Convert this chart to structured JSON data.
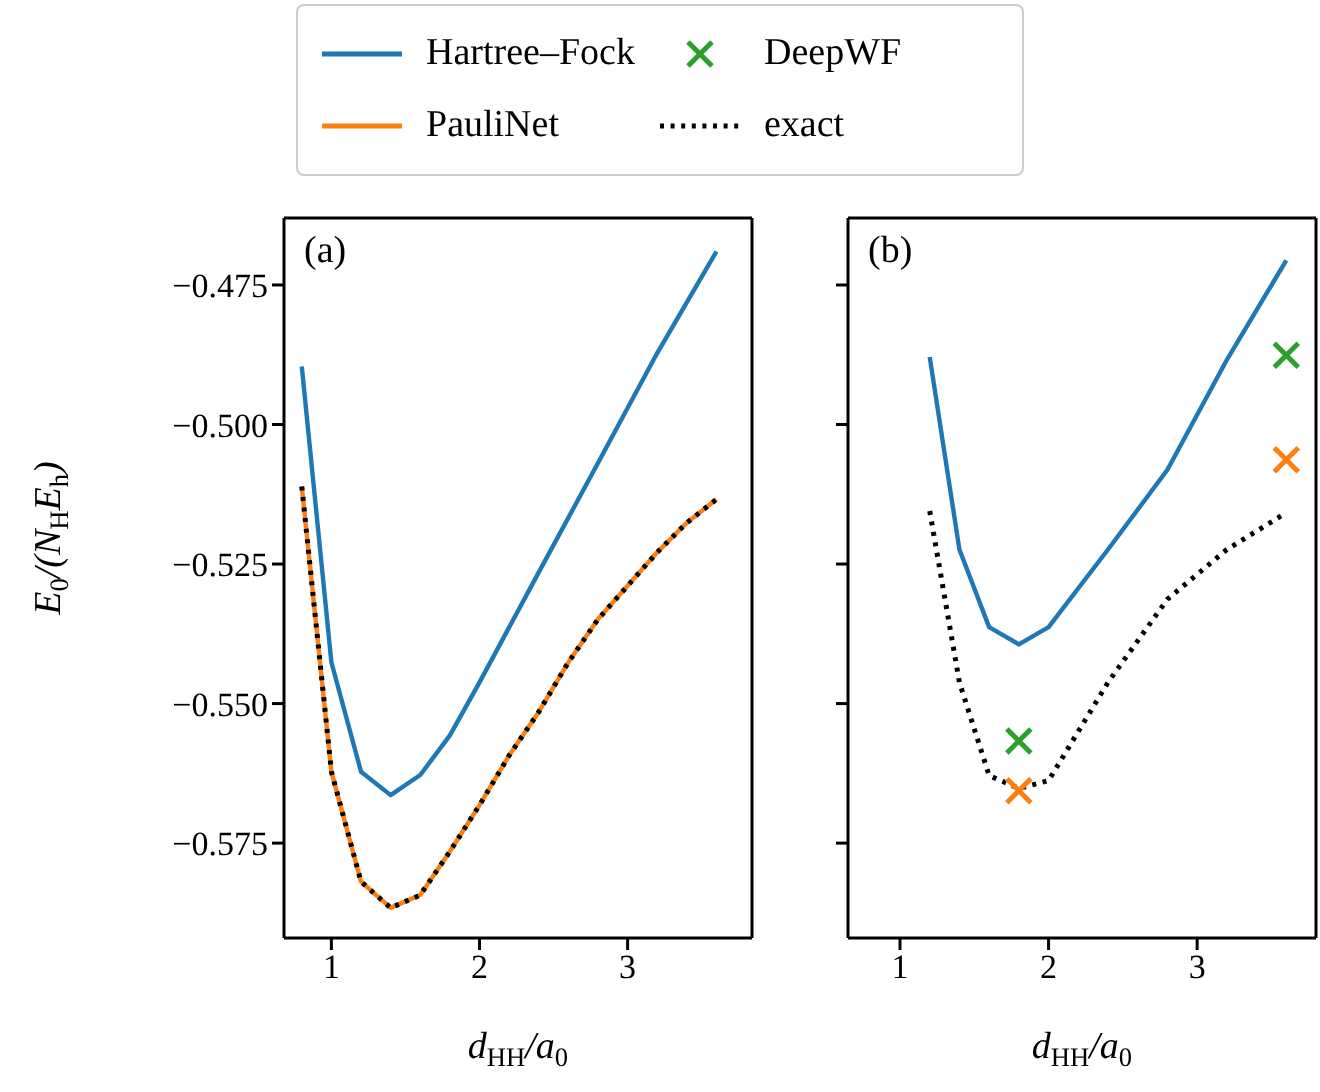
{
  "chart_data": [
    {
      "type": "line",
      "xlabel": "d$_{HH}$/a$_{0}$",
      "ylabel": "E$_{0}$/(N$_{H}$E$_{h}$)",
      "annotations": [
        "(a)"
      ],
      "legend": "top",
      "xlim": [
        0.68,
        3.84
      ],
      "xticks": [
        1,
        2,
        3
      ],
      "ylim": [
        -0.592,
        -0.463
      ],
      "yticks": [
        {
          "value": -0.475,
          "label": "−0.475"
        },
        {
          "value": -0.5,
          "label": "−0.500"
        },
        {
          "value": -0.525,
          "label": "−0.525"
        },
        {
          "value": -0.55,
          "label": "−0.550"
        },
        {
          "value": -0.575,
          "label": "−0.575"
        }
      ],
      "series": [
        {
          "name": "Hartree–Fock",
          "color": "#1f77b4",
          "x": [
            0.8,
            1.0,
            1.2,
            1.4,
            1.6,
            1.8,
            2.0,
            2.4,
            2.8,
            3.2,
            3.6
          ],
          "values": [
            -0.4896,
            -0.5426,
            -0.5622,
            -0.5664,
            -0.5628,
            -0.5557,
            -0.5462,
            -0.5265,
            -0.5069,
            -0.4872,
            -0.469
          ]
        },
        {
          "name": "PauliNet",
          "color": "#ff7f0e",
          "x": [
            0.8,
            1.0,
            1.2,
            1.4,
            1.6,
            1.8,
            2.0,
            2.2,
            2.4,
            2.6,
            2.8,
            3.0,
            3.2,
            3.4,
            3.6
          ],
          "values": [
            -0.5111,
            -0.5622,
            -0.5819,
            -0.5866,
            -0.5843,
            -0.5765,
            -0.5682,
            -0.5593,
            -0.5515,
            -0.5426,
            -0.5349,
            -0.5289,
            -0.5229,
            -0.5176,
            -0.5134
          ]
        },
        {
          "name": "exact",
          "color": "#000000",
          "line_style": "dotted",
          "x": [
            0.8,
            1.0,
            1.2,
            1.4,
            1.6,
            1.8,
            2.0,
            2.2,
            2.4,
            2.6,
            2.8,
            3.0,
            3.2,
            3.4,
            3.6
          ],
          "values": [
            -0.5111,
            -0.5622,
            -0.5819,
            -0.5866,
            -0.5843,
            -0.5765,
            -0.5682,
            -0.5593,
            -0.5515,
            -0.5426,
            -0.5349,
            -0.5289,
            -0.5229,
            -0.5176,
            -0.5134
          ]
        }
      ]
    },
    {
      "type": "line",
      "xlabel": "d$_{HH}$/a$_{0}$",
      "annotations": [
        "(b)"
      ],
      "legend": "top",
      "tick_labels": "x",
      "xlim": [
        0.65,
        3.8
      ],
      "xticks": [
        1,
        2,
        3
      ],
      "ylim": [
        -0.592,
        -0.463
      ],
      "yticks": [
        {
          "value": -0.475,
          "label": null
        },
        {
          "value": -0.5,
          "label": null
        },
        {
          "value": -0.525,
          "label": null
        },
        {
          "value": -0.55,
          "label": null
        },
        {
          "value": -0.575,
          "label": null
        }
      ],
      "series": [
        {
          "name": "Hartree–Fock",
          "color": "#1f77b4",
          "x": [
            1.2,
            1.4,
            1.6,
            1.8,
            2.0,
            2.4,
            2.8,
            3.2,
            3.6
          ],
          "values": [
            -0.4879,
            -0.5224,
            -0.5363,
            -0.5394,
            -0.5363,
            -0.5224,
            -0.5081,
            -0.4884,
            -0.4706
          ]
        },
        {
          "name": "PauliNet",
          "type": "scatter",
          "marker": "cross",
          "color": "#ff7f0e",
          "x": [
            1.8,
            3.6
          ],
          "values": [
            -0.5656,
            -0.5063
          ]
        },
        {
          "name": "DeepWF",
          "type": "scatter",
          "marker": "cross",
          "color": "#2ca02c",
          "x": [
            1.8,
            3.6
          ],
          "values": [
            -0.5567,
            -0.4876
          ]
        },
        {
          "name": "exact",
          "color": "#000000",
          "line_style": "dotted",
          "x": [
            1.2,
            1.4,
            1.6,
            1.8,
            2.0,
            2.4,
            2.8,
            3.2,
            3.6
          ],
          "values": [
            -0.5155,
            -0.5462,
            -0.5629,
            -0.5652,
            -0.5638,
            -0.5462,
            -0.5313,
            -0.5224,
            -0.5158
          ]
        }
      ]
    }
  ]
}
